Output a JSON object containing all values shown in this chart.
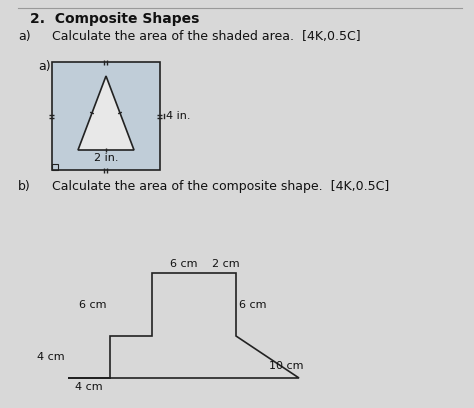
{
  "title": "2.  Composite Shapes",
  "part_a_label": "a)",
  "part_a_instruction": "Calculate the area of the shaded area.  [4K,0.5C]",
  "part_a_sublabel": "a)",
  "part_b_label": "b)",
  "part_b_instruction": "Calculate the area of the composite shape.  [4K,0.5C]",
  "bg_color": "#d8d8d8",
  "square_fill": "#c0cdd8",
  "triangle_fill": "#e8e8e8",
  "shape_edge_color": "#222222",
  "dim_4in": "4 in.",
  "dim_2in": "2 in.",
  "dim_2cm": "2 cm",
  "dim_6cm_top": "6 cm",
  "dim_6cm_right": "6 cm",
  "dim_6cm_left": "6 cm",
  "dim_4cm_left": "4 cm",
  "dim_4cm_bottom": "4 cm",
  "dim_10cm": "10 cm",
  "title_fontsize": 10,
  "label_fontsize": 9,
  "dim_fontsize": 8
}
